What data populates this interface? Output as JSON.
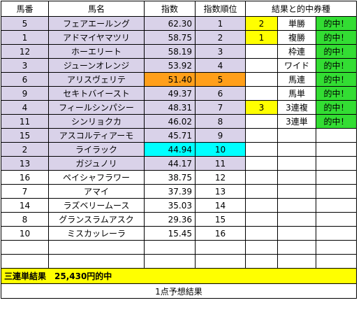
{
  "headers": {
    "umaban": "馬番",
    "bamei": "馬名",
    "shisu": "指数",
    "juni": "指数順位",
    "result": "結果と的中券種"
  },
  "rows": [
    {
      "umaban": "5",
      "name": "フェアエールング",
      "index": "62.30",
      "rank": "1",
      "result": "2",
      "bet": "単勝",
      "hit": "的中！"
    },
    {
      "umaban": "1",
      "name": "アドマイヤマツリ",
      "index": "58.75",
      "rank": "2",
      "result": "1",
      "bet": "複勝",
      "hit": "的中！"
    },
    {
      "umaban": "12",
      "name": "ホーエリート",
      "index": "58.19",
      "rank": "3",
      "result": "",
      "bet": "枠連",
      "hit": "的中！"
    },
    {
      "umaban": "3",
      "name": "ジューンオレンジ",
      "index": "53.92",
      "rank": "4",
      "result": "",
      "bet": "ワイド",
      "hit": "的中！"
    },
    {
      "umaban": "6",
      "name": "アリスヴェリテ",
      "index": "51.40",
      "rank": "5",
      "result": "",
      "bet": "馬連",
      "hit": "的中！"
    },
    {
      "umaban": "9",
      "name": "セキトバイースト",
      "index": "49.37",
      "rank": "6",
      "result": "",
      "bet": "馬単",
      "hit": "的中！"
    },
    {
      "umaban": "4",
      "name": "フィールシンパシー",
      "index": "48.31",
      "rank": "7",
      "result": "3",
      "bet": "3連複",
      "hit": "的中！"
    },
    {
      "umaban": "11",
      "name": "シンリョクカ",
      "index": "46.02",
      "rank": "8",
      "result": "",
      "bet": "3連単",
      "hit": "的中！"
    },
    {
      "umaban": "15",
      "name": "アスコルティアーモ",
      "index": "45.71",
      "rank": "9",
      "result": "",
      "bet": "",
      "hit": ""
    },
    {
      "umaban": "2",
      "name": "ライラック",
      "index": "44.94",
      "rank": "10",
      "result": "",
      "bet": "",
      "hit": ""
    },
    {
      "umaban": "13",
      "name": "ガジュノリ",
      "index": "44.17",
      "rank": "11",
      "result": "",
      "bet": "",
      "hit": ""
    },
    {
      "umaban": "16",
      "name": "ペイシャフラワー",
      "index": "38.75",
      "rank": "12",
      "result": "",
      "bet": "",
      "hit": ""
    },
    {
      "umaban": "7",
      "name": "アマイ",
      "index": "37.39",
      "rank": "13",
      "result": "",
      "bet": "",
      "hit": ""
    },
    {
      "umaban": "14",
      "name": "ラズベリームース",
      "index": "35.03",
      "rank": "14",
      "result": "",
      "bet": "",
      "hit": ""
    },
    {
      "umaban": "8",
      "name": "グランスラムアスク",
      "index": "29.36",
      "rank": "15",
      "result": "",
      "bet": "",
      "hit": ""
    },
    {
      "umaban": "10",
      "name": "ミスカッレーラ",
      "index": "15.45",
      "rank": "16",
      "result": "",
      "bet": "",
      "hit": ""
    }
  ],
  "summary": "三連単結果　25,430円的中",
  "footer": "1点予想結果",
  "colors": {
    "lavender": "#d9d2e9",
    "orange": "#ff9f1a",
    "cyan": "#00ffff",
    "yellow": "#ffff00",
    "green": "#33dd33"
  }
}
